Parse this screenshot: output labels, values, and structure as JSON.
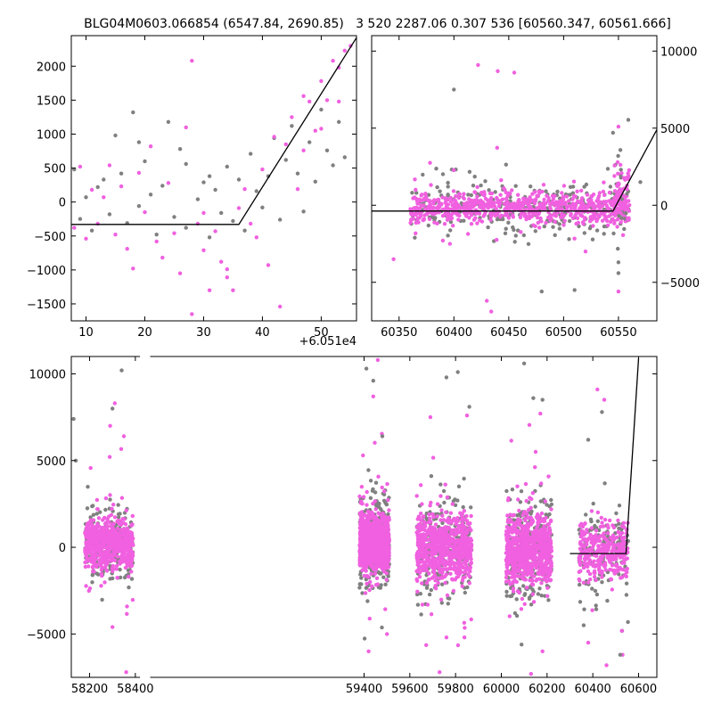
{
  "header": {
    "left_title": "BLG04M0603.066854 (6547.84, 2690.85)",
    "right_title": "3 520 2287.06 0.307 536 [60560.347, 60561.666]"
  },
  "colors": {
    "pink": "#f060e0",
    "gray": "#808080",
    "model": "#000000",
    "axes": "#000000"
  },
  "chart_data": [
    {
      "id": "zoom-panel",
      "type": "scatter",
      "title": "",
      "xlabel": "",
      "ylabel": "",
      "x_offset_label": "+6.051e4",
      "xlim": [
        7.5,
        56
      ],
      "ylim": [
        -1750,
        2450
      ],
      "xticks": [
        10,
        20,
        30,
        40,
        50
      ],
      "yticks": [
        -1500,
        -1000,
        -500,
        0,
        500,
        1000,
        1500,
        2000
      ],
      "yaxis_side": "left",
      "model_line": [
        [
          7.5,
          -330
        ],
        [
          36,
          -330
        ],
        [
          56,
          2420
        ]
      ],
      "series": [
        {
          "color": "gray",
          "points": [
            [
              8,
              480
            ],
            [
              9,
              -250
            ],
            [
              10,
              70
            ],
            [
              11,
              -420
            ],
            [
              12,
              220
            ],
            [
              13,
              330
            ],
            [
              14,
              -180
            ],
            [
              15,
              980
            ],
            [
              16,
              420
            ],
            [
              17,
              -310
            ],
            [
              18,
              1320
            ],
            [
              19,
              -60
            ],
            [
              20,
              600
            ],
            [
              21,
              110
            ],
            [
              22,
              -480
            ],
            [
              23,
              240
            ],
            [
              24,
              1180
            ],
            [
              25,
              -220
            ],
            [
              26,
              780
            ],
            [
              27,
              -380
            ],
            [
              29,
              40
            ],
            [
              30,
              290
            ],
            [
              31,
              -520
            ],
            [
              32,
              180
            ],
            [
              33,
              -160
            ],
            [
              34,
              520
            ],
            [
              35,
              -280
            ],
            [
              36,
              330
            ],
            [
              37,
              -420
            ],
            [
              38,
              710
            ],
            [
              39,
              160
            ],
            [
              40,
              -80
            ],
            [
              41,
              380
            ],
            [
              42,
              940
            ],
            [
              43,
              -260
            ],
            [
              44,
              620
            ],
            [
              45,
              1120
            ],
            [
              46,
              420
            ],
            [
              47,
              -140
            ],
            [
              48,
              880
            ],
            [
              49,
              300
            ],
            [
              50,
              1360
            ],
            [
              51,
              760
            ],
            [
              52,
              540
            ],
            [
              53,
              1180
            ],
            [
              54,
              660
            ],
            [
              31,
              380
            ],
            [
              19,
              880
            ],
            [
              27,
              560
            ]
          ]
        },
        {
          "color": "pink",
          "points": [
            [
              8,
              -380
            ],
            [
              9,
              520
            ],
            [
              10,
              -540
            ],
            [
              11,
              180
            ],
            [
              12,
              -320
            ],
            [
              13,
              70
            ],
            [
              14,
              540
            ],
            [
              15,
              -480
            ],
            [
              16,
              230
            ],
            [
              17,
              -690
            ],
            [
              18,
              -980
            ],
            [
              19,
              430
            ],
            [
              20,
              -150
            ],
            [
              21,
              820
            ],
            [
              22,
              -580
            ],
            [
              23,
              -820
            ],
            [
              24,
              280
            ],
            [
              25,
              -460
            ],
            [
              26,
              -1050
            ],
            [
              27,
              1100
            ],
            [
              28,
              -1650
            ],
            [
              29,
              -320
            ],
            [
              30,
              -710
            ],
            [
              31,
              -1300
            ],
            [
              32,
              -430
            ],
            [
              33,
              -880
            ],
            [
              34,
              -990
            ],
            [
              35,
              -1300
            ],
            [
              36,
              -90
            ],
            [
              37,
              190
            ],
            [
              38,
              -320
            ],
            [
              39,
              -520
            ],
            [
              40,
              480
            ],
            [
              41,
              -930
            ],
            [
              42,
              960
            ],
            [
              43,
              -1540
            ],
            [
              44,
              850
            ],
            [
              45,
              1250
            ],
            [
              46,
              190
            ],
            [
              47,
              760
            ],
            [
              48,
              1480
            ],
            [
              49,
              1050
            ],
            [
              50,
              1780
            ],
            [
              51,
              1500
            ],
            [
              52,
              2080
            ],
            [
              53,
              1980
            ],
            [
              54,
              2230
            ],
            [
              55,
              2300
            ],
            [
              28,
              2080
            ],
            [
              30,
              -160
            ],
            [
              34,
              -1110
            ],
            [
              47,
              1560
            ],
            [
              50,
              1080
            ],
            [
              53,
              1480
            ]
          ]
        }
      ]
    },
    {
      "id": "season-panel",
      "type": "scatter",
      "title": "",
      "xlabel": "",
      "ylabel": "",
      "xlim": [
        60325,
        60585
      ],
      "ylim": [
        -7500,
        11000
      ],
      "xticks": [
        60350,
        60400,
        60450,
        60500,
        60550
      ],
      "yticks": [
        -5000,
        0,
        5000,
        10000
      ],
      "yaxis_side": "right",
      "model_line": [
        [
          60325,
          -380
        ],
        [
          60545,
          -380
        ],
        [
          60585,
          4900
        ]
      ],
      "clusters": [
        {
          "x0": 60360,
          "x1": 60560,
          "y_center": -150,
          "y_spread": 500,
          "n_pink": 700,
          "n_gray": 280
        },
        {
          "x0": 60545,
          "x1": 60560,
          "y_center": 800,
          "y_spread": 900,
          "n_pink": 60,
          "n_gray": 20
        }
      ],
      "series": [
        {
          "color": "pink",
          "points": [
            [
              60422,
              9100
            ],
            [
              60440,
              8700
            ],
            [
              60455,
              8600
            ],
            [
              60345,
              -3500
            ],
            [
              60430,
              -6200
            ],
            [
              60434,
              -6900
            ],
            [
              60550,
              5100
            ],
            [
              60550,
              -5600
            ],
            [
              60520,
              -3000
            ]
          ]
        },
        {
          "color": "gray",
          "points": [
            [
              60400,
              7500
            ],
            [
              60480,
              -5600
            ],
            [
              60510,
              -5500
            ],
            [
              60505,
              -2200
            ],
            [
              60550,
              -4400
            ],
            [
              60550,
              -3700
            ],
            [
              60570,
              1500
            ],
            [
              60545,
              4700
            ]
          ]
        }
      ]
    },
    {
      "id": "full-panel",
      "type": "scatter",
      "title": "",
      "xlabel": "",
      "ylabel": "",
      "xlim": [
        58120,
        60680
      ],
      "ylim": [
        -7500,
        11000
      ],
      "xticks": [
        58200,
        58400,
        59400,
        59600,
        59800,
        60000,
        60200,
        60400,
        60600
      ],
      "yticks": [
        -5000,
        0,
        5000,
        10000
      ],
      "yaxis_side": "left",
      "axis_gap": [
        58420,
        58465
      ],
      "model_line": [
        [
          60300,
          -360
        ],
        [
          60545,
          -360
        ],
        [
          60600,
          10900
        ]
      ],
      "clusters": [
        {
          "x0": 58180,
          "x1": 58390,
          "y_center": 200,
          "y_spread": 700,
          "n_pink": 650,
          "n_gray": 160
        },
        {
          "x0": 59380,
          "x1": 59510,
          "y_center": 300,
          "y_spread": 800,
          "n_pink": 900,
          "n_gray": 280
        },
        {
          "x0": 59630,
          "x1": 59870,
          "y_center": 0,
          "y_spread": 900,
          "n_pink": 700,
          "n_gray": 220
        },
        {
          "x0": 60020,
          "x1": 60220,
          "y_center": -100,
          "y_spread": 1000,
          "n_pink": 700,
          "n_gray": 240
        },
        {
          "x0": 60340,
          "x1": 60555,
          "y_center": -200,
          "y_spread": 800,
          "n_pink": 320,
          "n_gray": 130
        }
      ],
      "series": [
        {
          "color": "pink",
          "points": [
            [
              58310,
              8300
            ],
            [
              58290,
              7000
            ],
            [
              58350,
              6400
            ],
            [
              58360,
              -7200
            ],
            [
              58300,
              -4600
            ],
            [
              59460,
              10800
            ],
            [
              59440,
              8700
            ],
            [
              59500,
              -5000
            ],
            [
              59420,
              -6000
            ],
            [
              59690,
              7500
            ],
            [
              59760,
              -5200
            ],
            [
              59730,
              -7200
            ],
            [
              59850,
              7600
            ],
            [
              60150,
              5500
            ],
            [
              60180,
              -6000
            ],
            [
              60130,
              -7300
            ],
            [
              60420,
              9100
            ],
            [
              60450,
              8500
            ],
            [
              60380,
              -5500
            ],
            [
              60460,
              -6800
            ],
            [
              60530,
              -6200
            ]
          ]
        },
        {
          "color": "gray",
          "points": [
            [
              58130,
              7400
            ],
            [
              58140,
              5000
            ],
            [
              58300,
              8000
            ],
            [
              58340,
              10200
            ],
            [
              59410,
              10300
            ],
            [
              59440,
              9600
            ],
            [
              59480,
              6400
            ],
            [
              59760,
              9800
            ],
            [
              59810,
              10100
            ],
            [
              59860,
              8100
            ],
            [
              60100,
              10600
            ],
            [
              60140,
              8600
            ],
            [
              60180,
              8500
            ],
            [
              60060,
              -3800
            ],
            [
              60360,
              -4500
            ],
            [
              60380,
              6200
            ],
            [
              60440,
              7800
            ],
            [
              60520,
              -6200
            ]
          ]
        }
      ]
    }
  ]
}
